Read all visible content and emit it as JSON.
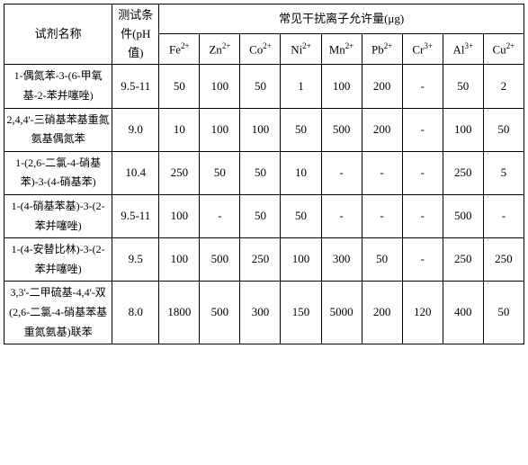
{
  "headers": {
    "reagent": "试剂名称",
    "condition": "测试条件(pH值)",
    "ion_group": "常见干扰离子允许量(μg)",
    "ions": [
      "Fe",
      "Zn",
      "Co",
      "Ni",
      "Mn",
      "Pb",
      "Cr",
      "Al",
      "Cu"
    ],
    "charges": [
      "2+",
      "2+",
      "2+",
      "2+",
      "2+",
      "2+",
      "3+",
      "3+",
      "2+"
    ]
  },
  "rows": [
    {
      "reagent": "1-偶氮苯-3-(6-甲氧基-2-苯并噻唑)",
      "ph": "9.5-11",
      "values": [
        "50",
        "100",
        "50",
        "1",
        "100",
        "200",
        "-",
        "50",
        "2"
      ]
    },
    {
      "reagent": "2,4,4'-三硝基苯基重氮氨基偶氮苯",
      "ph": "9.0",
      "values": [
        "10",
        "100",
        "100",
        "50",
        "500",
        "200",
        "-",
        "100",
        "50"
      ]
    },
    {
      "reagent": "1-(2,6-二氯-4-硝基苯)-3-(4-硝基苯)",
      "ph": "10.4",
      "values": [
        "250",
        "50",
        "50",
        "10",
        "-",
        "-",
        "-",
        "250",
        "5"
      ]
    },
    {
      "reagent": "1-(4-硝基苯基)-3-(2-苯并噻唑)",
      "ph": "9.5-11",
      "values": [
        "100",
        "-",
        "50",
        "50",
        "-",
        "-",
        "-",
        "500",
        "-"
      ]
    },
    {
      "reagent": "1-(4-安替比林)-3-(2-苯并噻唑)",
      "ph": "9.5",
      "values": [
        "100",
        "500",
        "250",
        "100",
        "300",
        "50",
        "-",
        "250",
        "250"
      ]
    },
    {
      "reagent": "3,3'-二甲硫基-4,4'-双(2,6-二氯-4-硝基苯基重氮氨基)联苯",
      "ph": "8.0",
      "values": [
        "1800",
        "500",
        "300",
        "150",
        "5000",
        "200",
        "120",
        "400",
        "50"
      ]
    }
  ]
}
